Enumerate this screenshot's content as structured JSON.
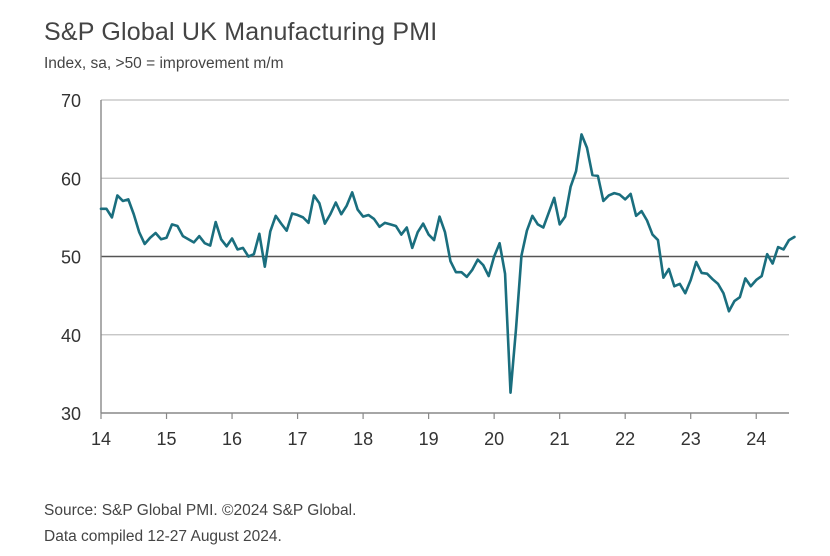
{
  "title": "S&P Global UK Manufacturing PMI",
  "subtitle": "Index, sa, >50 = improvement m/m",
  "footer": {
    "source": "Source: S&P Global PMI. ©2024 S&P Global.",
    "compiled": "Data compiled 12-27 August 2024."
  },
  "colors": {
    "line": "#1a6e7e",
    "grid": "#bfbfbf",
    "axis": "#888888",
    "text": "#333333"
  },
  "chart_data": {
    "type": "line",
    "title": "S&P Global UK Manufacturing PMI",
    "subtitle": "Index, sa, >50 = improvement m/m",
    "xlabel": "",
    "ylabel": "",
    "ylim": [
      30,
      70
    ],
    "yticks": [
      30,
      40,
      50,
      60,
      70
    ],
    "xticks": [
      "14",
      "15",
      "16",
      "17",
      "18",
      "19",
      "20",
      "21",
      "22",
      "23",
      "24"
    ],
    "x_start": "2014-01",
    "x_frequency": "monthly",
    "grid": true,
    "legend": "none",
    "series": [
      {
        "values": [
          56.1,
          56.1,
          55.0,
          57.8,
          57.1,
          57.3,
          55.4,
          53.1,
          51.6,
          52.4,
          53.0,
          52.2,
          52.4,
          54.1,
          53.9,
          52.6,
          52.2,
          51.8,
          52.6,
          51.7,
          51.4,
          54.4,
          52.2,
          51.3,
          52.3,
          50.9,
          51.1,
          50.0,
          50.3,
          52.9,
          48.7,
          53.2,
          55.2,
          54.2,
          53.3,
          55.5,
          55.3,
          55.0,
          54.3,
          57.8,
          56.8,
          54.2,
          55.4,
          56.9,
          55.4,
          56.5,
          58.2,
          56.0,
          55.1,
          55.3,
          54.8,
          53.8,
          54.3,
          54.1,
          53.9,
          52.8,
          53.7,
          51.1,
          53.1,
          54.2,
          52.8,
          52.1,
          55.1,
          53.1,
          49.4,
          48.0,
          48.0,
          47.4,
          48.3,
          49.6,
          48.9,
          47.5,
          50.0,
          51.7,
          47.8,
          32.6,
          40.7,
          50.1,
          53.3,
          55.2,
          54.1,
          53.7,
          55.6,
          57.5,
          54.1,
          55.1,
          58.9,
          60.9,
          65.6,
          63.9,
          60.4,
          60.3,
          57.1,
          57.8,
          58.1,
          57.9,
          57.3,
          58.0,
          55.2,
          55.8,
          54.6,
          52.8,
          52.1,
          47.3,
          48.4,
          46.2,
          46.5,
          45.3,
          47.0,
          49.3,
          47.9,
          47.8,
          47.1,
          46.5,
          45.3,
          43.0,
          44.3,
          44.8,
          47.2,
          46.2,
          47.0,
          47.5,
          50.3,
          49.1,
          51.2,
          50.9,
          52.1,
          52.5
        ]
      }
    ]
  }
}
